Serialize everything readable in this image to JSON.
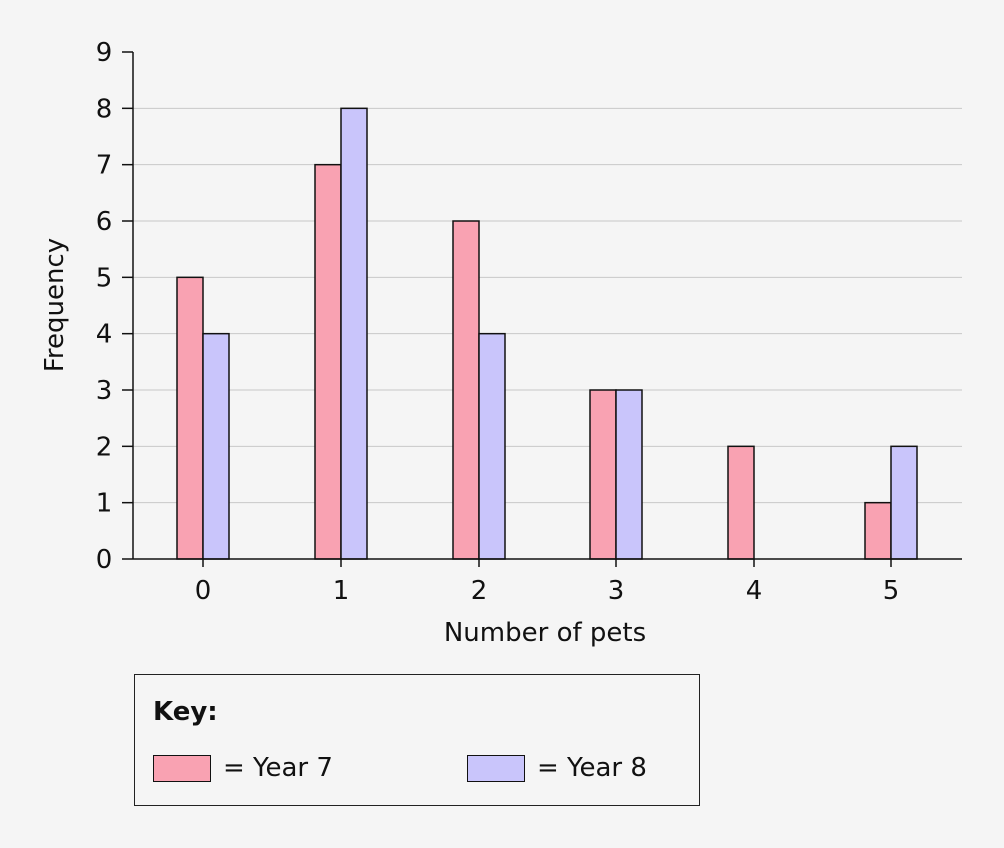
{
  "colors": {
    "year7": "#f9a2b2",
    "year8": "#c9c5fb",
    "gridline": "#c8c8c8",
    "axis": "#111111"
  },
  "chart_data": {
    "type": "bar",
    "title": "",
    "xlabel": "Number of pets",
    "ylabel": "Frequency",
    "categories": [
      "0",
      "1",
      "2",
      "3",
      "4",
      "5"
    ],
    "ylim": [
      0,
      9
    ],
    "yticks": [
      "0",
      "1",
      "2",
      "3",
      "4",
      "5",
      "6",
      "7",
      "8",
      "9"
    ],
    "grid": true,
    "legend_position": "below",
    "series": [
      {
        "name": "Year 7",
        "values": [
          5,
          7,
          6,
          3,
          2,
          1
        ]
      },
      {
        "name": "Year 8",
        "values": [
          4,
          8,
          4,
          3,
          0,
          2
        ]
      }
    ]
  },
  "legend": {
    "title": "Key:",
    "items": [
      {
        "label": "= Year 7",
        "color": "#f9a2b2"
      },
      {
        "label": "= Year 8",
        "color": "#c9c5fb"
      }
    ]
  }
}
